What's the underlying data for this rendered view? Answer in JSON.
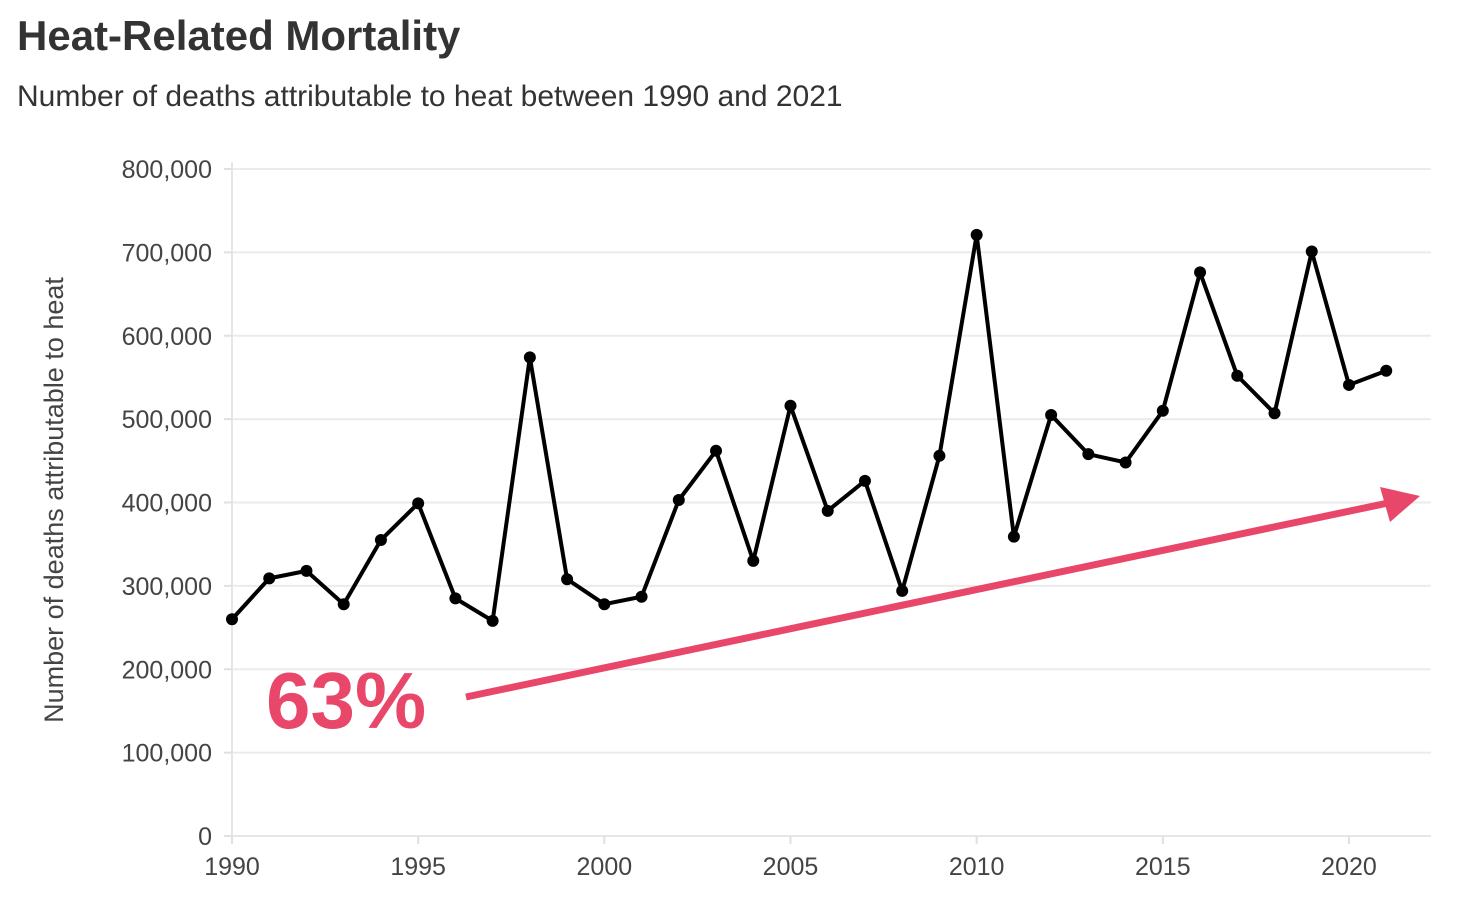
{
  "chart_data": {
    "type": "line",
    "title": "Heat-Related Mortality",
    "subtitle": "Number of deaths attributable to heat between 1990 and 2021",
    "xlabel": "",
    "ylabel": "Number of deaths attributable to heat",
    "xlim": [
      1990,
      2022.2
    ],
    "ylim": [
      0,
      800000
    ],
    "grid": true,
    "x_ticks": [
      1990,
      1995,
      2000,
      2005,
      2010,
      2015,
      2020
    ],
    "y_ticks": [
      0,
      100000,
      200000,
      300000,
      400000,
      500000,
      600000,
      700000,
      800000
    ],
    "y_tick_labels": [
      "0",
      "100,000",
      "200,000",
      "300,000",
      "400,000",
      "500,000",
      "600,000",
      "700,000",
      "800,000"
    ],
    "x": [
      1990,
      1991,
      1992,
      1993,
      1994,
      1995,
      1996,
      1997,
      1998,
      1999,
      2000,
      2001,
      2002,
      2003,
      2004,
      2005,
      2006,
      2007,
      2008,
      2009,
      2010,
      2011,
      2012,
      2013,
      2014,
      2015,
      2016,
      2017,
      2018,
      2019,
      2020,
      2021
    ],
    "series": [
      {
        "name": "Deaths attributable to heat",
        "color": "#000000",
        "values": [
          260000,
          309000,
          318000,
          278000,
          355000,
          399000,
          285000,
          258000,
          574000,
          308000,
          278000,
          287000,
          403000,
          462000,
          330000,
          516000,
          390000,
          426000,
          294000,
          456000,
          721000,
          359000,
          505000,
          458000,
          448000,
          510000,
          676000,
          552000,
          507000,
          701000,
          541000,
          558000
        ]
      }
    ],
    "annotation": {
      "text": "63%",
      "color": "#e8476a"
    }
  }
}
